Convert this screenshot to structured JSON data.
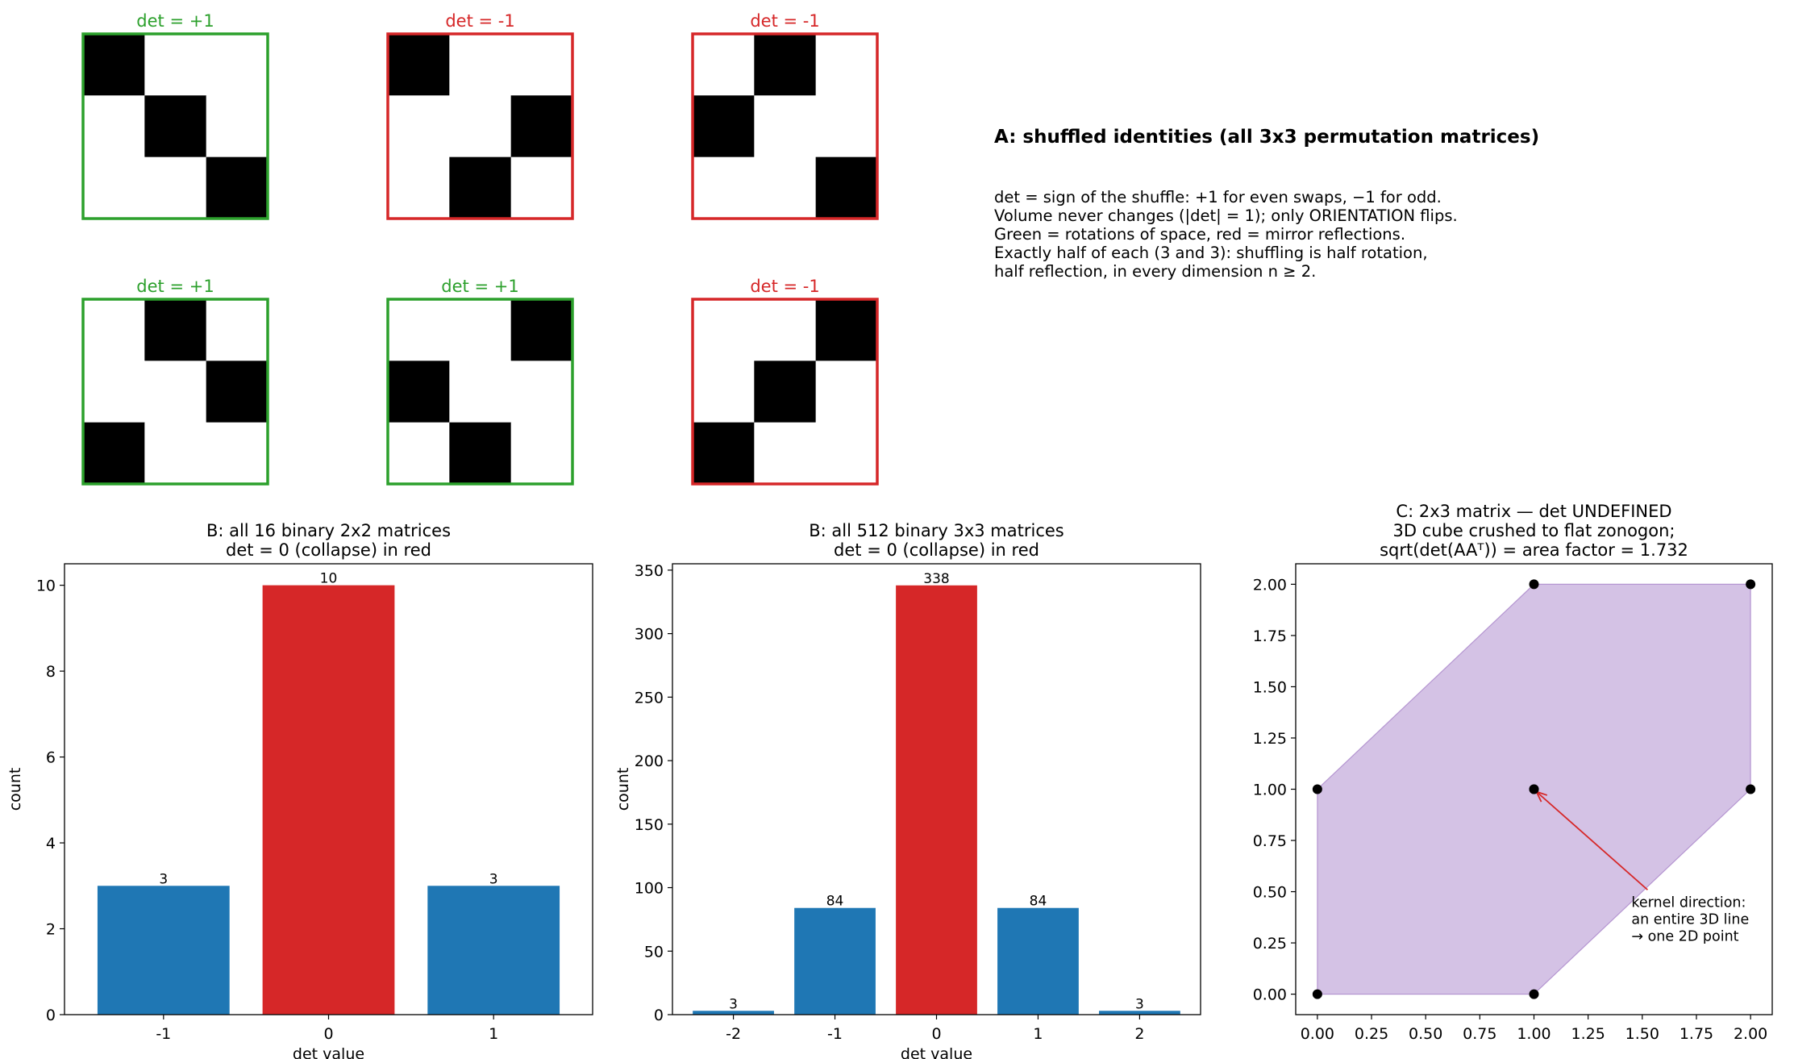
{
  "panel_a": {
    "title": "A: shuffled identities (all 3x3 permutation matrices)",
    "description": [
      "det = sign of the shuffle: +1 for even swaps, −1 for odd.",
      "Volume never changes (|det| = 1); only ORIENTATION flips.",
      "Green = rotations of space, red = mirror reflections.",
      "Exactly half of each (3 and 3): shuffling is half rotation,",
      "half reflection, in every dimension n ≥ 2."
    ],
    "colors": {
      "positive": "#2ca02c",
      "negative": "#d62728",
      "filled": "#000000",
      "empty": "#ffffff"
    }
  },
  "chart_data": [
    {
      "type": "heatmap",
      "title": "det = +1",
      "det": 1,
      "matrix": [
        [
          1,
          0,
          0
        ],
        [
          0,
          1,
          0
        ],
        [
          0,
          0,
          1
        ]
      ]
    },
    {
      "type": "heatmap",
      "title": "det = -1",
      "det": -1,
      "matrix": [
        [
          1,
          0,
          0
        ],
        [
          0,
          0,
          1
        ],
        [
          0,
          1,
          0
        ]
      ]
    },
    {
      "type": "heatmap",
      "title": "det = -1",
      "det": -1,
      "matrix": [
        [
          0,
          1,
          0
        ],
        [
          1,
          0,
          0
        ],
        [
          0,
          0,
          1
        ]
      ]
    },
    {
      "type": "heatmap",
      "title": "det = +1",
      "det": 1,
      "matrix": [
        [
          0,
          1,
          0
        ],
        [
          0,
          0,
          1
        ],
        [
          1,
          0,
          0
        ]
      ]
    },
    {
      "type": "heatmap",
      "title": "det = +1",
      "det": 1,
      "matrix": [
        [
          0,
          0,
          1
        ],
        [
          1,
          0,
          0
        ],
        [
          0,
          1,
          0
        ]
      ]
    },
    {
      "type": "heatmap",
      "title": "det = -1",
      "det": -1,
      "matrix": [
        [
          0,
          0,
          1
        ],
        [
          0,
          1,
          0
        ],
        [
          1,
          0,
          0
        ]
      ]
    },
    {
      "type": "bar",
      "title": [
        "B: all 16 binary 2x2 matrices",
        "det = 0 (collapse) in red"
      ],
      "xlabel": "det value",
      "ylabel": "count",
      "categories": [
        "-1",
        "0",
        "1"
      ],
      "values": [
        3,
        10,
        3
      ],
      "colors": [
        "#1f77b4",
        "#d62728",
        "#1f77b4"
      ],
      "ylim": [
        0,
        10.5
      ],
      "yticks": [
        0,
        2,
        4,
        6,
        8,
        10
      ]
    },
    {
      "type": "bar",
      "title": [
        "B: all 512 binary 3x3 matrices",
        "det = 0 (collapse) in red"
      ],
      "xlabel": "det value",
      "ylabel": "count",
      "categories": [
        "-2",
        "-1",
        "0",
        "1",
        "2"
      ],
      "values": [
        3,
        84,
        338,
        84,
        3
      ],
      "colors": [
        "#1f77b4",
        "#1f77b4",
        "#d62728",
        "#1f77b4",
        "#1f77b4"
      ],
      "ylim": [
        0,
        355
      ],
      "yticks": [
        0,
        50,
        100,
        150,
        200,
        250,
        300,
        350
      ]
    },
    {
      "type": "scatter",
      "title": [
        "C: 2x3 matrix — det UNDEFINED",
        "3D cube crushed to flat zonogon;",
        "sqrt(det(AAᵀ)) = area factor = 1.732"
      ],
      "polygon": [
        [
          0,
          0
        ],
        [
          1,
          0
        ],
        [
          2,
          1
        ],
        [
          2,
          2
        ],
        [
          1,
          2
        ],
        [
          0,
          1
        ]
      ],
      "points": [
        [
          0,
          0
        ],
        [
          1,
          0
        ],
        [
          0,
          1
        ],
        [
          1,
          1
        ],
        [
          1,
          1
        ],
        [
          2,
          1
        ],
        [
          1,
          2
        ],
        [
          2,
          2
        ]
      ],
      "fill_color": "#9467bd",
      "point_color": "#000000",
      "xlim": [
        -0.1,
        2.1
      ],
      "ylim": [
        -0.1,
        2.1
      ],
      "ticks": [
        "0.00",
        "0.25",
        "0.50",
        "0.75",
        "1.00",
        "1.25",
        "1.50",
        "1.75",
        "2.00"
      ],
      "annotation": {
        "text": [
          "kernel direction:",
          "an entire 3D line",
          "→ one 2D point"
        ],
        "xy": [
          1,
          1
        ],
        "xytext": [
          1.45,
          0.45
        ],
        "arrow_color": "#d62728"
      }
    }
  ]
}
